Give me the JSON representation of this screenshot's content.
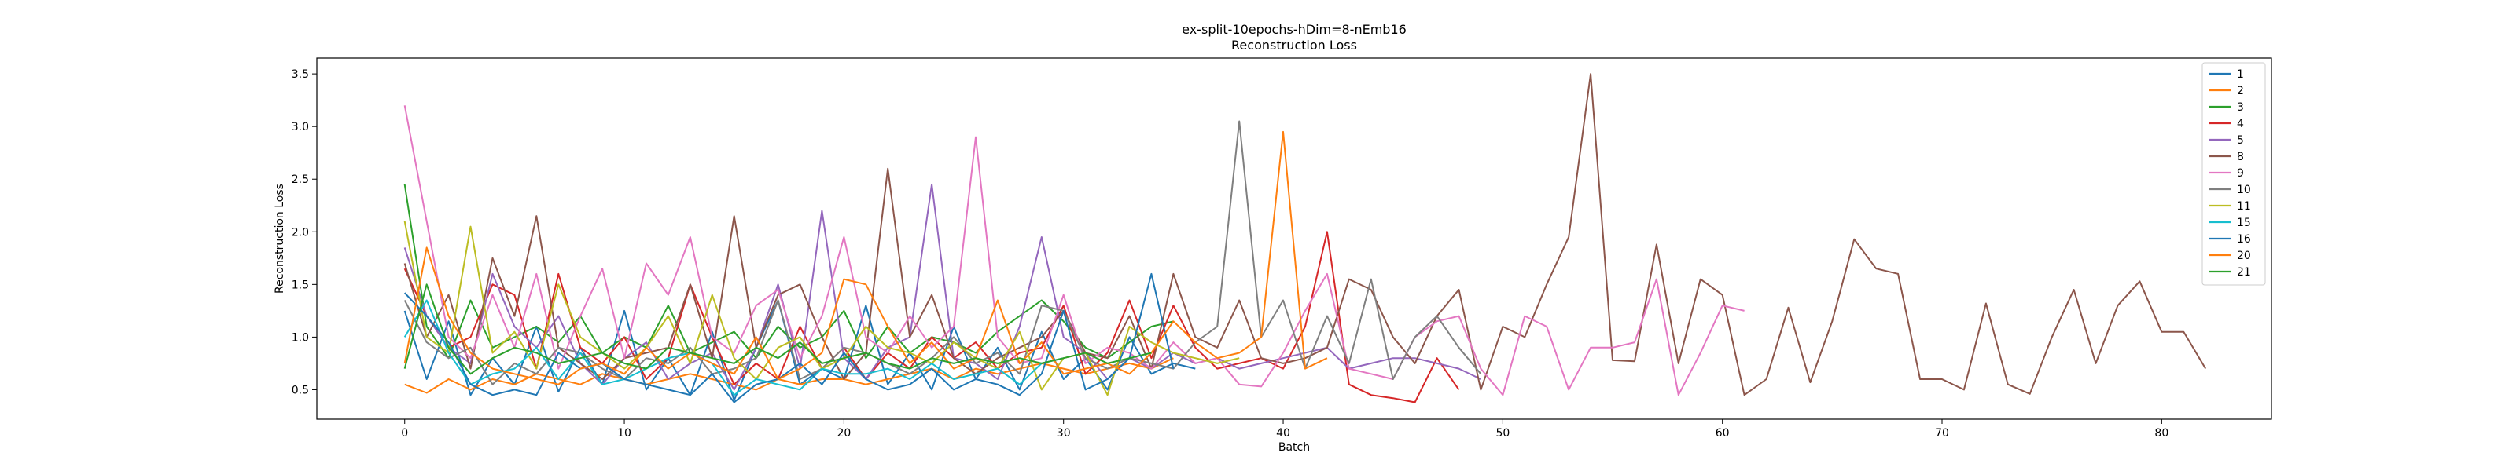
{
  "chart_data": {
    "type": "line",
    "title": "ex-split-10epochs-hDim=8-nEmb16",
    "subtitle": "Reconstruction Loss",
    "xlabel": "Batch",
    "ylabel": "Reconstruction Loss",
    "xlim": [
      -4,
      85
    ],
    "ylim": [
      0.22,
      3.65
    ],
    "xticks": [
      0,
      10,
      20,
      30,
      40,
      50,
      60,
      70,
      80
    ],
    "yticks": [
      0.5,
      1.0,
      1.5,
      2.0,
      2.5,
      3.0,
      3.5
    ],
    "ytick_labels": [
      "0.5",
      "1.0",
      "1.5",
      "2.0",
      "2.5",
      "3.0",
      "3.5"
    ],
    "grid": false,
    "legend_position": "top-right",
    "series": [
      {
        "name": "1",
        "color": "#1f77b4",
        "values": [
          1.25,
          0.6,
          1.15,
          0.45,
          0.8,
          0.55,
          1.1,
          0.48,
          0.9,
          0.55,
          1.25,
          0.5,
          0.8,
          0.45,
          1.05,
          0.4,
          0.9,
          1.35,
          0.55,
          0.7,
          0.6,
          1.3,
          0.55,
          0.85,
          0.5,
          1.1,
          0.6,
          0.9,
          0.5,
          1.05,
          0.6,
          0.8,
          0.5,
          1.0,
          0.65,
          0.75,
          0.7
        ]
      },
      {
        "name": "2",
        "color": "#ff7f0e",
        "values": [
          0.55,
          0.47,
          0.6,
          0.5,
          0.6,
          0.55,
          0.65,
          0.6,
          0.55,
          0.65,
          0.6,
          0.55,
          0.6,
          0.65,
          0.6,
          0.55,
          0.5,
          0.6,
          0.55,
          0.6,
          0.6,
          0.55,
          0.6,
          0.65,
          0.7,
          0.6,
          0.7,
          0.65,
          0.7,
          0.75,
          0.7,
          0.65,
          0.7,
          0.75,
          0.7,
          0.8
        ]
      },
      {
        "name": "3",
        "color": "#2ca02c",
        "values": [
          2.45,
          1.1,
          0.8,
          1.35,
          0.9,
          1.0,
          1.1,
          0.95,
          1.2,
          0.85,
          1.0,
          0.9,
          1.3,
          0.85,
          0.95,
          1.05,
          0.8,
          1.1,
          0.9,
          1.0,
          1.25,
          0.8,
          1.1,
          0.85,
          1.0,
          0.95,
          0.85,
          1.05,
          1.2,
          1.35,
          1.15,
          0.9,
          0.8,
          0.95,
          1.1,
          1.15
        ]
      },
      {
        "name": "4",
        "color": "#d62728",
        "values": [
          1.65,
          1.2,
          0.9,
          1.0,
          1.5,
          1.4,
          0.7,
          1.6,
          0.9,
          0.75,
          1.0,
          0.6,
          0.8,
          1.5,
          1.0,
          0.55,
          0.75,
          0.6,
          1.1,
          0.7,
          0.9,
          0.6,
          0.85,
          0.7,
          1.0,
          0.8,
          0.95,
          0.7,
          0.85,
          0.9,
          1.3,
          0.65,
          0.85,
          1.35,
          0.8,
          1.3,
          0.9,
          0.7,
          0.75,
          0.8,
          0.7,
          1.1,
          2.0,
          0.55,
          0.45,
          0.42,
          0.38,
          0.8,
          0.5
        ]
      },
      {
        "name": "5",
        "color": "#9467bd",
        "values": [
          1.85,
          1.2,
          0.9,
          0.75,
          1.6,
          1.1,
          0.9,
          1.2,
          0.75,
          0.55,
          0.8,
          0.95,
          0.6,
          0.75,
          0.85,
          0.5,
          0.9,
          1.5,
          0.7,
          2.2,
          0.8,
          0.6,
          0.9,
          1.0,
          2.45,
          0.8,
          0.75,
          0.6,
          1.1,
          1.95,
          1.0,
          0.85,
          0.6,
          0.8,
          0.7,
          0.85,
          0.75,
          0.8,
          0.7,
          0.75,
          0.8,
          0.85,
          0.9,
          0.7,
          0.75,
          0.8,
          0.8,
          0.75,
          0.7,
          0.6
        ]
      },
      {
        "name": "8",
        "color": "#8c564b",
        "values": [
          1.7,
          1.0,
          1.4,
          0.7,
          1.75,
          1.2,
          2.15,
          0.9,
          0.75,
          0.6,
          0.8,
          0.85,
          0.9,
          1.5,
          0.8,
          2.15,
          0.9,
          1.4,
          1.5,
          1.0,
          0.6,
          0.85,
          2.6,
          1.0,
          1.4,
          0.8,
          0.65,
          0.8,
          0.9,
          1.0,
          1.25,
          0.85,
          0.8,
          1.2,
          0.7,
          1.6,
          1.0,
          0.9,
          1.35,
          0.8,
          0.75,
          0.8,
          0.9,
          1.55,
          1.45,
          1.0,
          0.75,
          1.2,
          1.45,
          0.5,
          1.1,
          1.0,
          1.5,
          1.95,
          3.5,
          0.78,
          0.77,
          1.88,
          0.75,
          1.55,
          1.4,
          0.45,
          0.6,
          1.28,
          0.57,
          1.15,
          1.93,
          1.65,
          1.6,
          0.6,
          0.6,
          0.5,
          1.32,
          0.55,
          0.46,
          1.0,
          1.45,
          0.75,
          1.3,
          1.53,
          1.05,
          1.05,
          0.7
        ]
      },
      {
        "name": "9",
        "color": "#e377c2",
        "values": [
          3.2,
          2.1,
          1.0,
          0.8,
          1.4,
          0.9,
          1.6,
          0.7,
          1.2,
          1.65,
          0.8,
          1.7,
          1.4,
          1.95,
          1.0,
          0.85,
          1.3,
          1.45,
          0.8,
          1.2,
          1.95,
          1.0,
          0.85,
          1.2,
          0.9,
          1.1,
          2.9,
          1.0,
          0.75,
          0.8,
          1.4,
          0.75,
          0.9,
          0.85,
          0.7,
          0.95,
          0.75,
          0.8,
          0.55,
          0.53,
          0.85,
          1.25,
          1.6,
          0.7,
          0.65,
          0.6,
          1.0,
          1.15,
          1.2,
          0.7,
          0.45,
          1.2,
          1.1,
          0.5,
          0.9,
          0.9,
          0.95,
          1.55,
          0.45,
          0.85,
          1.3,
          1.25
        ]
      },
      {
        "name": "10",
        "color": "#7f7f7f",
        "values": [
          1.35,
          0.95,
          0.8,
          0.9,
          0.55,
          0.75,
          0.65,
          0.9,
          0.85,
          0.7,
          0.6,
          0.8,
          0.75,
          0.9,
          0.65,
          0.7,
          0.8,
          1.35,
          0.6,
          0.7,
          0.9,
          0.85,
          0.75,
          0.65,
          0.8,
          1.0,
          0.75,
          0.85,
          0.65,
          1.3,
          1.25,
          0.8,
          0.7,
          0.8,
          0.75,
          0.7,
          0.95,
          1.1,
          3.05,
          1.0,
          1.35,
          0.7,
          1.2,
          0.75,
          1.55,
          0.6,
          1.0,
          1.2,
          0.9,
          0.65
        ]
      },
      {
        "name": "11",
        "color": "#bcbd22",
        "values": [
          2.1,
          1.0,
          0.85,
          2.05,
          0.85,
          1.05,
          0.7,
          1.5,
          1.0,
          0.85,
          0.7,
          0.9,
          1.2,
          0.75,
          1.4,
          0.8,
          0.6,
          0.9,
          1.0,
          0.7,
          0.8,
          1.1,
          0.9,
          0.85,
          0.75,
          0.95,
          0.8,
          0.7,
          1.05,
          0.5,
          0.8,
          0.85,
          0.45,
          1.1,
          0.95,
          0.85,
          0.8,
          0.75,
          0.8
        ]
      },
      {
        "name": "15",
        "color": "#17becf",
        "values": [
          1.0,
          1.35,
          0.85,
          0.55,
          0.65,
          0.7,
          0.9,
          0.6,
          0.85,
          0.55,
          0.6,
          0.7,
          0.8,
          0.85,
          0.75,
          0.45,
          0.6,
          0.55,
          0.5,
          0.7,
          0.65,
          0.65,
          0.7,
          0.6,
          0.75,
          0.6,
          0.65,
          0.7,
          0.55,
          0.75,
          0.8
        ]
      },
      {
        "name": "16",
        "color": "#1f77b4",
        "values": [
          1.42,
          1.2,
          0.95,
          0.55,
          0.45,
          0.5,
          0.45,
          0.85,
          0.7,
          0.75,
          0.6,
          0.55,
          0.5,
          0.45,
          0.65,
          0.38,
          0.55,
          0.6,
          0.75,
          0.55,
          0.85,
          0.6,
          0.5,
          0.55,
          0.7,
          0.5,
          0.6,
          0.55,
          0.45,
          0.65,
          1.25,
          0.5,
          0.6,
          0.8,
          1.6,
          0.7
        ]
      },
      {
        "name": "20",
        "color": "#ff7f0e",
        "values": [
          0.75,
          1.85,
          1.2,
          0.85,
          0.7,
          0.65,
          0.6,
          0.55,
          0.7,
          0.75,
          0.65,
          0.9,
          0.7,
          0.85,
          0.75,
          0.65,
          1.0,
          0.6,
          0.7,
          0.85,
          1.55,
          1.5,
          1.1,
          0.75,
          0.95,
          0.7,
          0.8,
          1.35,
          0.75,
          0.95,
          0.65,
          0.7,
          0.75,
          0.65,
          0.85,
          1.15,
          0.95,
          0.8,
          0.85,
          1.0,
          2.95,
          0.7,
          0.8
        ]
      },
      {
        "name": "21",
        "color": "#2ca02c",
        "values": [
          0.7,
          1.5,
          0.9,
          0.65,
          0.8,
          0.9,
          0.85,
          0.75,
          0.8,
          0.85,
          0.75,
          0.7,
          0.9,
          0.85,
          0.8,
          0.75,
          0.9,
          0.8,
          0.95,
          0.75,
          0.8,
          0.85,
          0.75,
          0.7,
          0.8,
          0.75,
          0.8,
          0.75,
          0.8,
          0.75,
          0.8,
          0.85,
          0.75,
          0.8,
          0.85
        ]
      }
    ]
  }
}
